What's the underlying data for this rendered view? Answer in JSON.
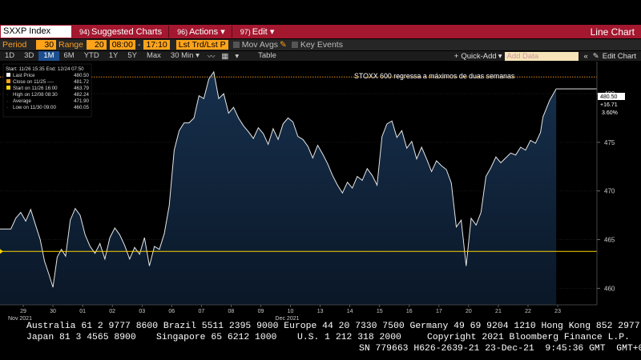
{
  "toolbar": {
    "ticker": "SXXP Index",
    "suggested_num": "94)",
    "suggested_label": "Suggested Charts",
    "actions_num": "96)",
    "actions_label": "Actions",
    "edit_num": "97)",
    "edit_label": "Edit",
    "chart_type": "Line Chart"
  },
  "params": {
    "period_label": "Period",
    "period_value": "30",
    "range_label": "Range",
    "range_value": "20",
    "start_time": "08:00",
    "end_time": "17:10",
    "lst_trd": "Lst Trd/Lst P",
    "mov_avgs": "Mov Avgs",
    "key_events": "Key Events"
  },
  "tabs": {
    "items": [
      "1D",
      "3D",
      "1M",
      "6M",
      "YTD",
      "1Y",
      "5Y",
      "Max"
    ],
    "active": "1M",
    "interval": "30 Min",
    "table": "Table",
    "quick_add": "Quick-Add",
    "add_data_placeholder": "Add Data",
    "edit_chart": "Edit Chart"
  },
  "legend": {
    "header": "Start: 11/26 15:35 End: 12/24 07:50",
    "rows": [
      {
        "label": "Last Price",
        "value": "480.50"
      },
      {
        "label": "Close on 11/25 ----",
        "value": "481.72"
      },
      {
        "label": "Start on 11/26 16:00",
        "value": "463.79"
      },
      {
        "label": "High on 12/08 08:30",
        "value": "482.24"
      },
      {
        "label": "Average",
        "value": "471.90"
      },
      {
        "label": "Low on 11/30 09:00",
        "value": "460.05"
      }
    ]
  },
  "annotation": "STOXX 600 regressa a máximos de duas semanas",
  "last_box": {
    "price": "480.50",
    "change": "+16.71",
    "pct": "3.60%"
  },
  "colors": {
    "titlebar": "#a3172f",
    "orange": "#ffa31a",
    "line": "#e6e6e6",
    "area_top": "#17304d",
    "area_bottom": "#0a1727",
    "start_line": "#ffd400",
    "close_line": "#ffa31a"
  },
  "chart_data": {
    "type": "area",
    "title": "STOXX 600 regressa a máximos de duas semanas",
    "ylim": [
      458.3,
      483.3
    ],
    "y_ticks": [
      460,
      465,
      470,
      475,
      480
    ],
    "x_ticks": [
      "29",
      "30",
      "01",
      "02",
      "03",
      "06",
      "07",
      "08",
      "09",
      "10",
      "13",
      "14",
      "15",
      "16",
      "17",
      "20",
      "21",
      "22",
      "23"
    ],
    "x_month_labels": [
      {
        "text": "Nov 2021",
        "at": "29"
      },
      {
        "text": "Dec 2021",
        "at": "10"
      }
    ],
    "reference_lines": [
      {
        "name": "Close on 11/25",
        "value": 481.72
      },
      {
        "name": "Start on 11/26 16:00",
        "value": 463.79
      }
    ],
    "series": [
      {
        "name": "Last Price",
        "points": [
          [
            "29",
            466.1
          ],
          [
            "29",
            467.2
          ],
          [
            "29",
            467.8
          ],
          [
            "29",
            466.9
          ],
          [
            "29",
            468.1
          ],
          [
            "29",
            466.5
          ],
          [
            "30",
            465.0
          ],
          [
            "30",
            462.8
          ],
          [
            "30",
            461.5
          ],
          [
            "30",
            460.1
          ],
          [
            "30",
            463.2
          ],
          [
            "30",
            464.0
          ],
          [
            "30",
            463.3
          ],
          [
            "01",
            467.0
          ],
          [
            "01",
            468.2
          ],
          [
            "01",
            467.5
          ],
          [
            "01",
            465.5
          ],
          [
            "01",
            464.3
          ],
          [
            "01",
            463.6
          ],
          [
            "02",
            464.6
          ],
          [
            "02",
            463.0
          ],
          [
            "02",
            465.2
          ],
          [
            "02",
            466.2
          ],
          [
            "02",
            465.5
          ],
          [
            "02",
            464.4
          ],
          [
            "03",
            463.0
          ],
          [
            "03",
            464.2
          ],
          [
            "03",
            463.5
          ],
          [
            "03",
            465.2
          ],
          [
            "03",
            462.3
          ],
          [
            "03",
            464.3
          ],
          [
            "06",
            464.0
          ],
          [
            "06",
            465.6
          ],
          [
            "06",
            468.5
          ],
          [
            "06",
            474.2
          ],
          [
            "06",
            476.2
          ],
          [
            "06",
            477.0
          ],
          [
            "07",
            477.0
          ],
          [
            "07",
            477.5
          ],
          [
            "07",
            479.8
          ],
          [
            "07",
            479.5
          ],
          [
            "07",
            481.5
          ],
          [
            "07",
            482.24
          ],
          [
            "08",
            479.5
          ],
          [
            "08",
            480.0
          ],
          [
            "08",
            478.0
          ],
          [
            "08",
            478.6
          ],
          [
            "08",
            477.5
          ],
          [
            "08",
            476.7
          ],
          [
            "09",
            476.1
          ],
          [
            "09",
            475.4
          ],
          [
            "09",
            476.5
          ],
          [
            "09",
            475.9
          ],
          [
            "09",
            474.8
          ],
          [
            "09",
            476.4
          ],
          [
            "10",
            475.3
          ],
          [
            "10",
            476.9
          ],
          [
            "10",
            477.5
          ],
          [
            "10",
            477.1
          ],
          [
            "10",
            475.6
          ],
          [
            "10",
            475.3
          ],
          [
            "13",
            474.6
          ],
          [
            "13",
            473.4
          ],
          [
            "13",
            474.7
          ],
          [
            "13",
            473.8
          ],
          [
            "13",
            472.8
          ],
          [
            "13",
            471.6
          ],
          [
            "14",
            470.6
          ],
          [
            "14",
            469.8
          ],
          [
            "14",
            470.9
          ],
          [
            "14",
            470.3
          ],
          [
            "14",
            471.5
          ],
          [
            "14",
            471.1
          ],
          [
            "15",
            472.3
          ],
          [
            "15",
            471.6
          ],
          [
            "15",
            470.6
          ],
          [
            "15",
            475.6
          ],
          [
            "15",
            476.9
          ],
          [
            "15",
            477.2
          ],
          [
            "16",
            475.5
          ],
          [
            "16",
            476.2
          ],
          [
            "16",
            474.4
          ],
          [
            "16",
            475.1
          ],
          [
            "16",
            473.3
          ],
          [
            "16",
            474.5
          ],
          [
            "17",
            473.3
          ],
          [
            "17",
            472.0
          ],
          [
            "17",
            473.1
          ],
          [
            "17",
            472.6
          ],
          [
            "17",
            472.2
          ],
          [
            "17",
            470.8
          ],
          [
            "20",
            466.3
          ],
          [
            "20",
            467.0
          ],
          [
            "20",
            462.3
          ],
          [
            "20",
            467.2
          ],
          [
            "20",
            466.5
          ],
          [
            "20",
            467.8
          ],
          [
            "21",
            471.5
          ],
          [
            "21",
            472.4
          ],
          [
            "21",
            473.5
          ],
          [
            "21",
            472.9
          ],
          [
            "21",
            473.4
          ],
          [
            "21",
            473.9
          ],
          [
            "22",
            473.7
          ],
          [
            "22",
            474.5
          ],
          [
            "22",
            474.2
          ],
          [
            "22",
            475.2
          ],
          [
            "22",
            474.9
          ],
          [
            "22",
            476.0
          ],
          [
            "23",
            477.6
          ],
          [
            "23",
            479.3
          ],
          [
            "23",
            480.5
          ]
        ]
      }
    ]
  },
  "footer": {
    "line1": "Australia 61 2 9777 8600 Brazil 5511 2395 9000 Europe 44 20 7330 7500 Germany 49 69 9204 1210 Hong Kong 852 2977 6000",
    "line2a": "Japan 81 3 4565 8900",
    "line2b": "Singapore 65 6212 1000",
    "line2c": "U.S. 1 212 318 2000",
    "line2d": "Copyright 2021 Bloomberg Finance L.P.",
    "line3": "SN 779663 H626-2639-21 23-Dec-21  9:45:36 GMT  GMT+0:00"
  }
}
